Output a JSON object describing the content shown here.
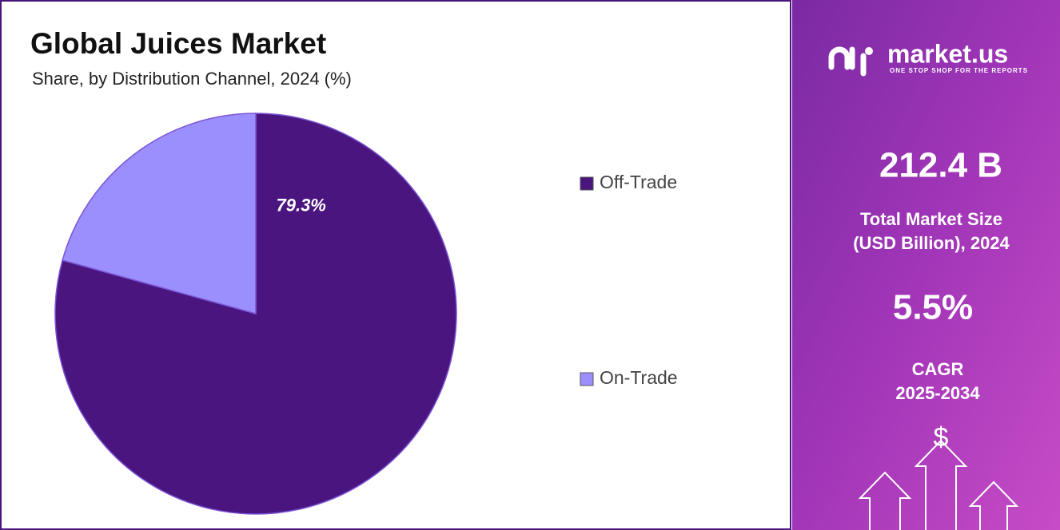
{
  "chart_data": {
    "type": "pie",
    "title": "Global Juices Market",
    "subtitle": "Share, by Distribution Channel, 2024 (%)",
    "categories": [
      "Off-Trade",
      "On-Trade"
    ],
    "values": [
      79.3,
      20.7
    ],
    "value_labels": [
      "79.3%",
      null
    ],
    "colors": [
      "#4b1580",
      "#9a8ffd"
    ],
    "legend": "right"
  },
  "panel": {
    "brand": "market.us",
    "tagline": "ONE STOP SHOP FOR THE REPORTS",
    "market_size": "212.4 B",
    "market_size_label": [
      "Total Market Size",
      "(USD Billion), 2024"
    ],
    "cagr": "5.5%",
    "cagr_label": [
      "CAGR",
      "2025-2034"
    ],
    "icon": "$"
  }
}
